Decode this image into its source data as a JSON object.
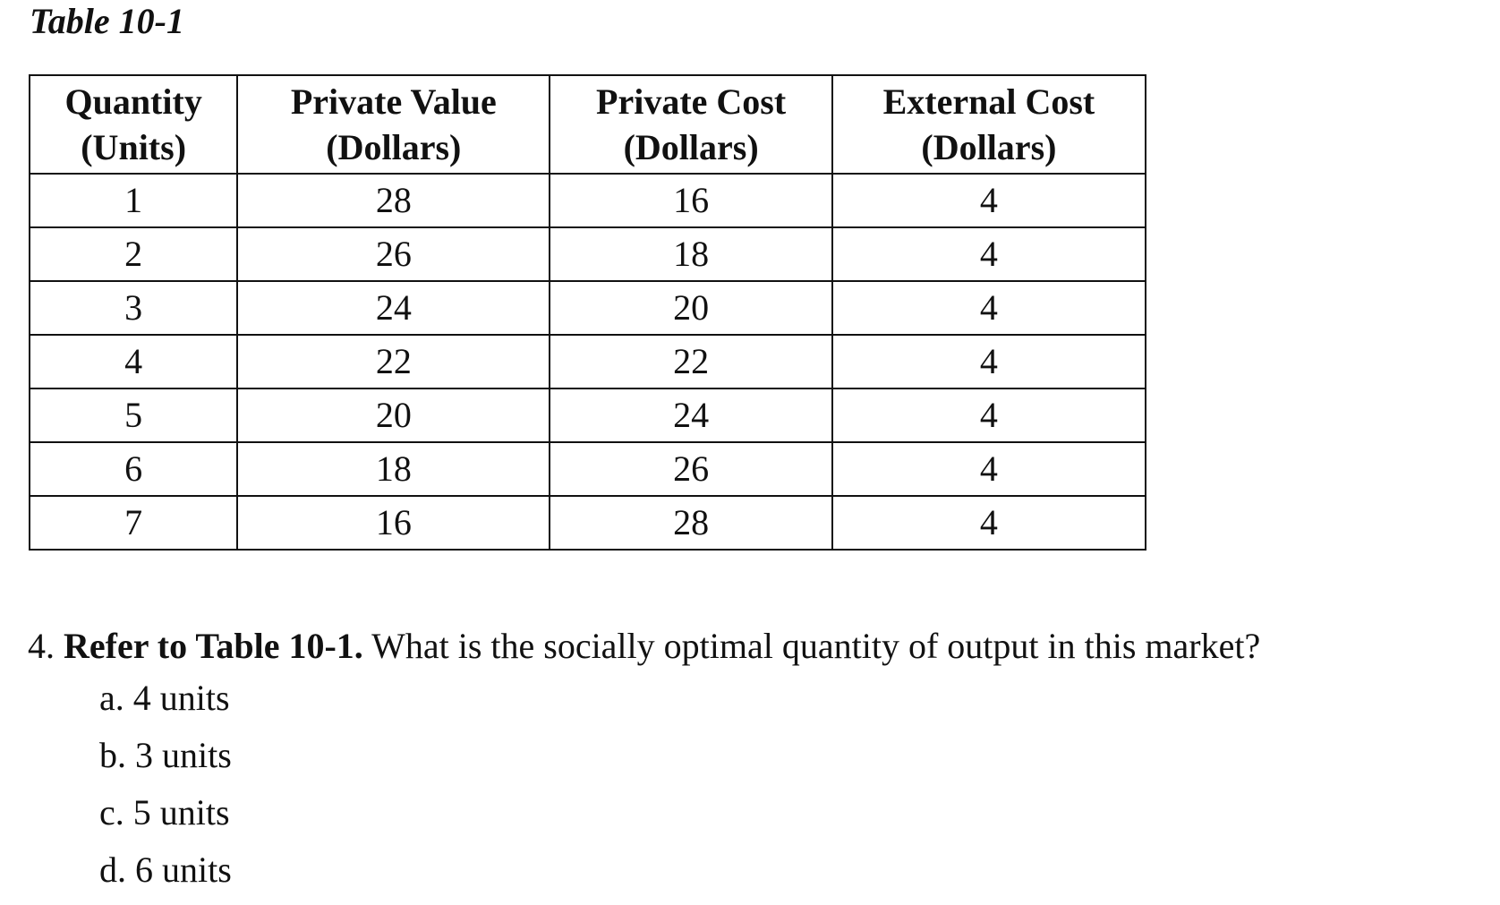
{
  "table": {
    "caption": "Table 10-1",
    "headers": [
      {
        "line1": "Quantity",
        "line2": "(Units)"
      },
      {
        "line1": "Private Value",
        "line2": "(Dollars)"
      },
      {
        "line1": "Private Cost",
        "line2": "(Dollars)"
      },
      {
        "line1": "External Cost",
        "line2": "(Dollars)"
      }
    ],
    "rows": [
      [
        "1",
        "28",
        "16",
        "4"
      ],
      [
        "2",
        "26",
        "18",
        "4"
      ],
      [
        "3",
        "24",
        "20",
        "4"
      ],
      [
        "4",
        "22",
        "22",
        "4"
      ],
      [
        "5",
        "20",
        "24",
        "4"
      ],
      [
        "6",
        "18",
        "26",
        "4"
      ],
      [
        "7",
        "16",
        "28",
        "4"
      ]
    ]
  },
  "question": {
    "number": "4.",
    "bold_text": "Refer to Table 10-1.",
    "text": "What is the socially optimal quantity of output in this market?",
    "choices": [
      "a. 4 units",
      "b. 3 units",
      "c. 5 units",
      "d. 6 units"
    ]
  }
}
